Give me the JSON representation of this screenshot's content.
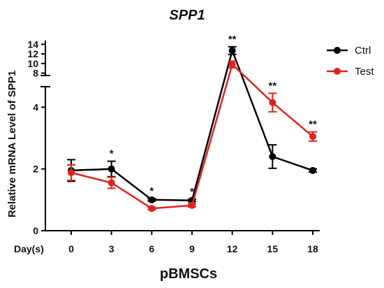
{
  "chart_data": {
    "type": "line",
    "title": "SPP1",
    "xlabel": "pBMSCs",
    "ylabel": "Relative mRNA Level of  SPP1",
    "x_prefix": "Day(s)",
    "x": [
      0,
      3,
      6,
      9,
      12,
      15,
      18
    ],
    "x_tick_labels": [
      "0",
      "3",
      "6",
      "9",
      "12",
      "15",
      "18"
    ],
    "y_axis_break": true,
    "ylim_lower": [
      0,
      4.8
    ],
    "ylim_upper": [
      7.5,
      14.5
    ],
    "y_ticks_lower": [
      "0",
      "2",
      "4"
    ],
    "y_ticks_upper": [
      "8",
      "10",
      "12",
      "14"
    ],
    "series": [
      {
        "name": "Ctrl",
        "color": "#000000",
        "values": [
          1.95,
          2.0,
          1.0,
          0.98,
          12.7,
          2.4,
          1.95
        ],
        "errors": [
          0.35,
          0.25,
          0.04,
          0.04,
          0.8,
          0.38,
          0.05
        ]
      },
      {
        "name": "Test",
        "color": "#e0231c",
        "values": [
          1.88,
          1.55,
          0.72,
          0.82,
          9.8,
          4.15,
          3.05
        ],
        "errors": [
          0.25,
          0.18,
          0.04,
          0.05,
          0.7,
          0.3,
          0.15
        ]
      }
    ],
    "significance": [
      "",
      "*",
      "*",
      "*",
      "**",
      "**",
      "**"
    ],
    "legend_position": "top-right",
    "grid": false
  }
}
